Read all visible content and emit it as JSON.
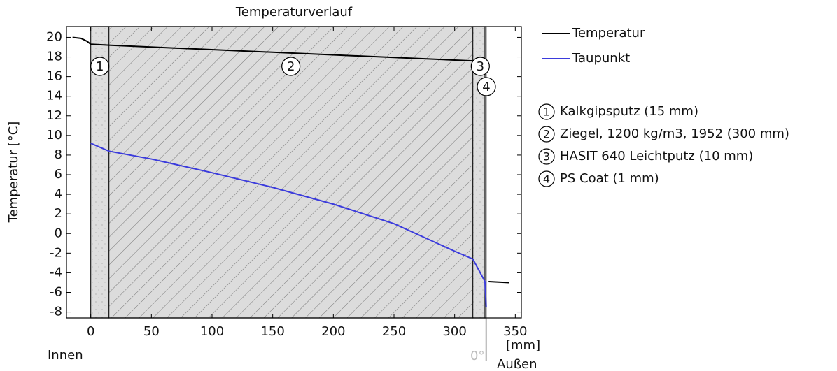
{
  "chart_data": {
    "type": "line",
    "title": "Temperaturverlauf",
    "xlabel": "[mm]",
    "ylabel": "Temperatur [°C]",
    "xlim": [
      -20,
      355
    ],
    "ylim": [
      -8.6,
      21.1
    ],
    "xticks": [
      0,
      50,
      100,
      150,
      200,
      250,
      300,
      350
    ],
    "yticks": [
      -8,
      -6,
      -4,
      -2,
      0,
      2,
      4,
      6,
      8,
      10,
      12,
      14,
      16,
      18,
      20
    ],
    "series": [
      {
        "name": "Temperatur",
        "color": "#000000",
        "x": [
          -15,
          -8,
          -3,
          0,
          15,
          315,
          326,
          328,
          345
        ],
        "values": [
          20.0,
          19.9,
          19.6,
          19.3,
          19.2,
          17.6,
          null,
          -4.9,
          -5.0
        ]
      },
      {
        "name": "Taupunkt",
        "color": "#3b3bdc",
        "x": [
          0,
          15,
          50,
          100,
          150,
          200,
          250,
          300,
          315,
          325,
          326
        ],
        "values": [
          9.2,
          8.4,
          7.6,
          6.2,
          4.7,
          3.0,
          1.0,
          -1.8,
          -2.6,
          -4.9,
          -7.5
        ]
      }
    ],
    "layers": [
      {
        "label": "1",
        "name": "Kalkgipsputz (15 mm)",
        "start": 0,
        "end": 15
      },
      {
        "label": "2",
        "name": "Ziegel, 1200 kg/m3, 1952 (300 mm)",
        "start": 15,
        "end": 315
      },
      {
        "label": "3",
        "name": "HASIT 640 Leichtputz (10 mm)",
        "start": 315,
        "end": 325
      },
      {
        "label": "4",
        "name": "PS Coat (1 mm)",
        "start": 325,
        "end": 326
      }
    ],
    "annotations": {
      "inside": "Innen",
      "outside": "Außen",
      "marker": "0°"
    }
  }
}
